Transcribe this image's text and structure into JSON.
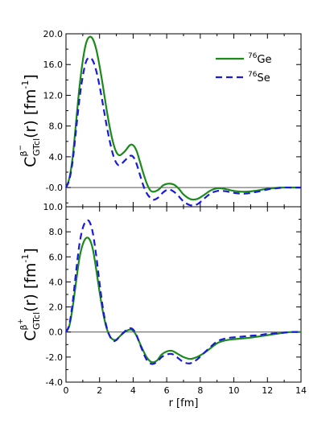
{
  "chart_data": [
    {
      "type": "line",
      "ylabel": {
        "main": "C",
        "sup": "β",
        "sup_mark": "−",
        "sub": "GTcl",
        "rest": "(r) [fm",
        "exp": "-1",
        "close": "]"
      },
      "xlim": [
        0,
        14
      ],
      "ylim": [
        -2.5,
        20.0
      ],
      "yticks": [
        "-0.0",
        "4.0",
        "8.0",
        "12.0",
        "16.0",
        "20.0"
      ],
      "yticks_values": [
        0,
        4,
        8,
        12,
        16,
        20
      ],
      "legend": {
        "placement": "top-right",
        "entries": [
          {
            "sup": "76",
            "text": "Ge",
            "color": "#1a8a1a",
            "dash": "solid"
          },
          {
            "sup": "76",
            "text": "Se",
            "color": "#1a1adc",
            "dash": "dashed"
          }
        ]
      },
      "series": [
        {
          "name": "76Ge",
          "color": "#1a8a1a",
          "dash": "solid",
          "x": [
            0,
            0.2,
            0.4,
            0.6,
            0.8,
            1.0,
            1.2,
            1.4,
            1.6,
            1.8,
            2.0,
            2.2,
            2.4,
            2.6,
            2.8,
            3.0,
            3.2,
            3.5,
            3.8,
            4.0,
            4.2,
            4.4,
            4.6,
            4.8,
            5.0,
            5.2,
            5.5,
            5.8,
            6.1,
            6.4,
            6.7,
            7.0,
            7.4,
            7.8,
            8.2,
            8.6,
            9.0,
            9.4,
            9.8,
            10.2,
            10.6,
            11.0,
            11.5,
            12.0,
            12.5,
            13.0,
            13.5,
            14.0
          ],
          "y": [
            0,
            1.2,
            4.0,
            8.5,
            13.0,
            16.5,
            18.8,
            19.6,
            19.3,
            18.0,
            15.8,
            13.2,
            10.4,
            7.9,
            5.9,
            4.6,
            4.2,
            4.7,
            5.5,
            5.5,
            4.8,
            3.4,
            1.9,
            0.6,
            -0.3,
            -0.55,
            -0.3,
            0.3,
            0.5,
            0.4,
            -0.1,
            -0.9,
            -1.5,
            -1.5,
            -1.0,
            -0.4,
            -0.1,
            -0.15,
            -0.35,
            -0.5,
            -0.55,
            -0.5,
            -0.35,
            -0.15,
            -0.05,
            0,
            0,
            0
          ]
        },
        {
          "name": "76Se",
          "color": "#1a1adc",
          "dash": "dashed",
          "x": [
            0,
            0.2,
            0.4,
            0.6,
            0.8,
            1.0,
            1.2,
            1.4,
            1.6,
            1.8,
            2.0,
            2.2,
            2.4,
            2.6,
            2.8,
            3.0,
            3.2,
            3.5,
            3.8,
            4.0,
            4.2,
            4.4,
            4.6,
            4.8,
            5.0,
            5.2,
            5.5,
            5.8,
            6.1,
            6.4,
            6.7,
            7.0,
            7.4,
            7.8,
            8.2,
            8.6,
            9.0,
            9.4,
            9.8,
            10.2,
            10.6,
            11.0,
            11.5,
            12.0,
            12.5,
            13.0,
            13.5,
            14.0
          ],
          "y": [
            0,
            1.0,
            3.5,
            7.5,
            11.5,
            14.5,
            16.4,
            16.9,
            16.5,
            15.2,
            13.2,
            10.8,
            8.3,
            6.1,
            4.3,
            3.2,
            2.9,
            3.5,
            4.1,
            4.0,
            3.1,
            1.7,
            0.3,
            -0.7,
            -1.3,
            -1.6,
            -1.3,
            -0.6,
            -0.25,
            -0.5,
            -1.1,
            -1.8,
            -2.3,
            -2.2,
            -1.5,
            -0.8,
            -0.45,
            -0.45,
            -0.6,
            -0.75,
            -0.8,
            -0.7,
            -0.5,
            -0.25,
            -0.1,
            0,
            0,
            0
          ]
        }
      ]
    },
    {
      "type": "line",
      "xlabel": "r [fm]",
      "ylabel": {
        "main": "C",
        "sup": "β",
        "sup_mark": "+",
        "sub": "GTcl",
        "rest": "(r) [fm",
        "exp": "-1",
        "close": "]"
      },
      "xlim": [
        0,
        14
      ],
      "ylim": [
        -4.0,
        10.0
      ],
      "xticks": [
        "0",
        "2",
        "4",
        "6",
        "8",
        "10",
        "12",
        "14"
      ],
      "xticks_values": [
        0,
        2,
        4,
        6,
        8,
        10,
        12,
        14
      ],
      "yticks": [
        "-4.0",
        "-2.0",
        "0.0",
        "2.0",
        "4.0",
        "6.0",
        "8.0",
        "10.0"
      ],
      "yticks_values": [
        -4,
        -2,
        0,
        2,
        4,
        6,
        8,
        10
      ],
      "series": [
        {
          "name": "76Ge",
          "color": "#1a8a1a",
          "dash": "solid",
          "x": [
            0,
            0.2,
            0.4,
            0.6,
            0.8,
            1.0,
            1.2,
            1.4,
            1.6,
            1.8,
            2.0,
            2.2,
            2.4,
            2.6,
            2.8,
            3.0,
            3.2,
            3.5,
            3.8,
            4.0,
            4.2,
            4.5,
            4.8,
            5.1,
            5.4,
            5.7,
            6.0,
            6.3,
            6.6,
            7.0,
            7.4,
            7.8,
            8.2,
            8.6,
            9.0,
            9.4,
            9.8,
            10.2,
            10.6,
            11.0,
            11.5,
            12.0,
            12.5,
            13.0,
            13.5,
            14.0
          ],
          "y": [
            0,
            0.5,
            2.0,
            4.0,
            5.9,
            7.0,
            7.5,
            7.4,
            6.6,
            5.0,
            3.2,
            1.6,
            0.4,
            -0.3,
            -0.6,
            -0.6,
            -0.35,
            0,
            0.2,
            0.1,
            -0.3,
            -1.2,
            -2.0,
            -2.4,
            -2.3,
            -1.8,
            -1.55,
            -1.5,
            -1.7,
            -2.0,
            -2.15,
            -2.0,
            -1.7,
            -1.3,
            -0.9,
            -0.7,
            -0.6,
            -0.55,
            -0.5,
            -0.45,
            -0.35,
            -0.25,
            -0.15,
            -0.05,
            0,
            0
          ]
        },
        {
          "name": "76Se",
          "color": "#1a1adc",
          "dash": "dashed",
          "x": [
            0,
            0.2,
            0.4,
            0.6,
            0.8,
            1.0,
            1.2,
            1.4,
            1.6,
            1.8,
            2.0,
            2.2,
            2.4,
            2.6,
            2.8,
            3.0,
            3.2,
            3.5,
            3.8,
            4.0,
            4.2,
            4.5,
            4.8,
            5.1,
            5.4,
            5.7,
            6.0,
            6.3,
            6.6,
            7.0,
            7.4,
            7.8,
            8.2,
            8.6,
            9.0,
            9.4,
            9.8,
            10.2,
            10.6,
            11.0,
            11.5,
            12.0,
            12.5,
            13.0,
            13.5,
            14.0
          ],
          "y": [
            0,
            0.6,
            2.4,
            4.8,
            7.0,
            8.3,
            8.85,
            8.8,
            7.9,
            6.1,
            3.9,
            1.9,
            0.5,
            -0.3,
            -0.7,
            -0.65,
            -0.35,
            0.05,
            0.3,
            0.2,
            -0.25,
            -1.3,
            -2.2,
            -2.55,
            -2.4,
            -2.0,
            -1.8,
            -1.75,
            -2.0,
            -2.4,
            -2.5,
            -2.2,
            -1.7,
            -1.2,
            -0.75,
            -0.55,
            -0.45,
            -0.4,
            -0.35,
            -0.3,
            -0.25,
            -0.15,
            -0.1,
            -0.05,
            0,
            0
          ]
        }
      ]
    }
  ]
}
